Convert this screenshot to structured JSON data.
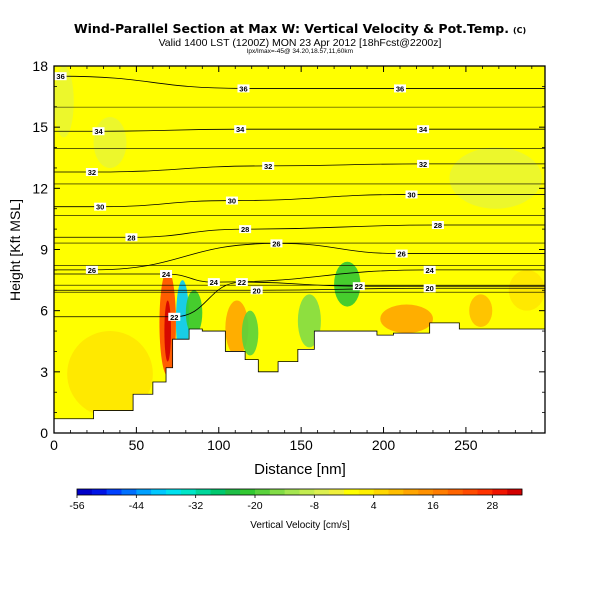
{
  "title": "Wind-Parallel Section at Max W: Vertical Velocity & Pot.Temp.",
  "title_mark": "(C)",
  "subtitle": "Valid 1400 LST (1200Z) MON 23 Apr 2012 [18hFcst@2200z]",
  "info": "lpx/lmax=-45@ 34.20,18.57,11,60km",
  "chart_data": {
    "type": "heatmap",
    "xlabel": "Distance [nm]",
    "ylabel": "Height [Kft MSL]",
    "xlim": [
      0,
      298
    ],
    "ylim": [
      0,
      18
    ],
    "x_ticks": [
      0,
      50,
      100,
      150,
      200,
      250
    ],
    "y_ticks": [
      0,
      3,
      6,
      9,
      12,
      15,
      18
    ],
    "colorbar": {
      "label": "Vertical Velocity [cm/s]",
      "tick_labels": [
        "-56",
        "-44",
        "-32",
        "-20",
        "-8",
        "4",
        "16",
        "28"
      ],
      "bins": [
        {
          "from": -56,
          "to": -53,
          "color": "#0000c8"
        },
        {
          "from": -53,
          "to": -50,
          "color": "#0014e6"
        },
        {
          "from": -50,
          "to": -47,
          "color": "#0040ff"
        },
        {
          "from": -47,
          "to": -44,
          "color": "#0070ff"
        },
        {
          "from": -44,
          "to": -41,
          "color": "#00a0ff"
        },
        {
          "from": -41,
          "to": -38,
          "color": "#00c8ff"
        },
        {
          "from": -38,
          "to": -35,
          "color": "#00e1f0"
        },
        {
          "from": -35,
          "to": -32,
          "color": "#00e6c8"
        },
        {
          "from": -32,
          "to": -29,
          "color": "#00d79b"
        },
        {
          "from": -29,
          "to": -26,
          "color": "#00c86e"
        },
        {
          "from": -26,
          "to": -23,
          "color": "#1ebe46"
        },
        {
          "from": -23,
          "to": -20,
          "color": "#32c832"
        },
        {
          "from": -20,
          "to": -17,
          "color": "#5ad23c"
        },
        {
          "from": -17,
          "to": -14,
          "color": "#82dc46"
        },
        {
          "from": -14,
          "to": -11,
          "color": "#a5e650"
        },
        {
          "from": -11,
          "to": -8,
          "color": "#c3ec50"
        },
        {
          "from": -8,
          "to": -5,
          "color": "#dcf050"
        },
        {
          "from": -5,
          "to": -2,
          "color": "#f0f03c"
        },
        {
          "from": -2,
          "to": 1,
          "color": "#ffff00"
        },
        {
          "from": 1,
          "to": 4,
          "color": "#fff000"
        },
        {
          "from": 4,
          "to": 7,
          "color": "#ffd700"
        },
        {
          "from": 7,
          "to": 10,
          "color": "#ffbe00"
        },
        {
          "from": 10,
          "to": 13,
          "color": "#ffa500"
        },
        {
          "from": 13,
          "to": 16,
          "color": "#ff9100"
        },
        {
          "from": 16,
          "to": 19,
          "color": "#ff7d00"
        },
        {
          "from": 19,
          "to": 22,
          "color": "#ff6400"
        },
        {
          "from": 22,
          "to": 25,
          "color": "#ff4b00"
        },
        {
          "from": 25,
          "to": 28,
          "color": "#ff3200"
        },
        {
          "from": 28,
          "to": 31,
          "color": "#f01400"
        },
        {
          "from": 31,
          "to": 34,
          "color": "#d20000"
        }
      ]
    },
    "background_color": "#ffff00",
    "terrain_color": "#ffffff",
    "terrain_profile": [
      [
        0,
        0.7
      ],
      [
        20,
        0.7
      ],
      [
        24,
        0.7
      ],
      [
        24,
        1.1
      ],
      [
        48,
        1.1
      ],
      [
        48,
        1.9
      ],
      [
        60,
        1.9
      ],
      [
        60,
        2.5
      ],
      [
        68,
        2.5
      ],
      [
        68,
        3.2
      ],
      [
        72,
        3.2
      ],
      [
        72,
        4.6
      ],
      [
        82,
        4.6
      ],
      [
        82,
        5.1
      ],
      [
        90,
        5.1
      ],
      [
        90,
        5.0
      ],
      [
        104,
        5.0
      ],
      [
        104,
        4.0
      ],
      [
        116,
        4.0
      ],
      [
        116,
        3.6
      ],
      [
        124,
        3.6
      ],
      [
        124,
        3.0
      ],
      [
        136,
        3.0
      ],
      [
        136,
        3.5
      ],
      [
        148,
        3.5
      ],
      [
        148,
        4.1
      ],
      [
        158,
        4.1
      ],
      [
        158,
        5.0
      ],
      [
        196,
        5.0
      ],
      [
        196,
        4.8
      ],
      [
        206,
        4.8
      ],
      [
        206,
        4.9
      ],
      [
        228,
        4.9
      ],
      [
        228,
        5.4
      ],
      [
        246,
        5.4
      ],
      [
        246,
        5.1
      ],
      [
        268,
        5.1
      ],
      [
        268,
        5.1
      ],
      [
        290,
        5.1
      ],
      [
        298,
        5.1
      ]
    ],
    "velocity_features": [
      {
        "kind": "strong-updraft",
        "color": "#ff4b00",
        "x": [
          64,
          74
        ],
        "y": [
          2.8,
          8.0
        ]
      },
      {
        "kind": "strong-updraft-core",
        "color": "#d20000",
        "x": [
          67,
          71
        ],
        "y": [
          3.5,
          6.5
        ]
      },
      {
        "kind": "downdraft",
        "color": "#00c8ff",
        "x": [
          74,
          82
        ],
        "y": [
          3.5,
          7.5
        ]
      },
      {
        "kind": "downdraft-edge",
        "color": "#32c832",
        "x": [
          80,
          90
        ],
        "y": [
          4.8,
          7.0
        ]
      },
      {
        "kind": "updraft",
        "color": "#ffa500",
        "x": [
          104,
          118
        ],
        "y": [
          3.8,
          6.5
        ]
      },
      {
        "kind": "downdraft",
        "color": "#5ad23c",
        "x": [
          114,
          124
        ],
        "y": [
          3.8,
          6.0
        ]
      },
      {
        "kind": "downdraft",
        "color": "#82dc46",
        "x": [
          148,
          162
        ],
        "y": [
          4.2,
          6.8
        ]
      },
      {
        "kind": "downdraft",
        "color": "#32c832",
        "x": [
          170,
          186
        ],
        "y": [
          6.2,
          8.4
        ]
      },
      {
        "kind": "updraft",
        "color": "#ffa500",
        "x": [
          198,
          230
        ],
        "y": [
          4.9,
          6.3
        ]
      },
      {
        "kind": "updraft",
        "color": "#ffbe00",
        "x": [
          252,
          266
        ],
        "y": [
          5.2,
          6.8
        ]
      },
      {
        "kind": "weak-downdraft",
        "color": "#dcf050",
        "x": [
          0,
          12
        ],
        "y": [
          14.5,
          18
        ]
      },
      {
        "kind": "weak-downdraft",
        "color": "#dcf050",
        "x": [
          24,
          44
        ],
        "y": [
          13.0,
          15.5
        ]
      },
      {
        "kind": "weak-downdraft",
        "color": "#dcf050",
        "x": [
          240,
          296
        ],
        "y": [
          11.0,
          14.0
        ]
      },
      {
        "kind": "weak-updraft",
        "color": "#ffd700",
        "x": [
          8,
          60
        ],
        "y": [
          0.8,
          5.0
        ]
      },
      {
        "kind": "weak-updraft",
        "color": "#ffd700",
        "x": [
          276,
          298
        ],
        "y": [
          6.0,
          8.0
        ]
      }
    ],
    "contour_field": "Potential Temperature",
    "contour_label_points": [
      {
        "label": "36",
        "x": 4,
        "y": 17.5
      },
      {
        "label": "36",
        "x": 115,
        "y": 16.9
      },
      {
        "label": "36",
        "x": 210,
        "y": 16.9
      },
      {
        "label": "34",
        "x": 27,
        "y": 14.8
      },
      {
        "label": "34",
        "x": 113,
        "y": 14.9
      },
      {
        "label": "34",
        "x": 224,
        "y": 14.9
      },
      {
        "label": "32",
        "x": 23,
        "y": 12.8
      },
      {
        "label": "32",
        "x": 130,
        "y": 13.1
      },
      {
        "label": "32",
        "x": 224,
        "y": 13.2
      },
      {
        "label": "30",
        "x": 28,
        "y": 11.1
      },
      {
        "label": "30",
        "x": 108,
        "y": 11.4
      },
      {
        "label": "30",
        "x": 217,
        "y": 11.7
      },
      {
        "label": "28",
        "x": 47,
        "y": 9.6
      },
      {
        "label": "28",
        "x": 116,
        "y": 10.0
      },
      {
        "label": "28",
        "x": 233,
        "y": 10.2
      },
      {
        "label": "26",
        "x": 23,
        "y": 8.0
      },
      {
        "label": "26",
        "x": 135,
        "y": 9.3
      },
      {
        "label": "26",
        "x": 211,
        "y": 8.8
      },
      {
        "label": "24",
        "x": 68,
        "y": 7.8
      },
      {
        "label": "24",
        "x": 97,
        "y": 7.4
      },
      {
        "label": "24",
        "x": 228,
        "y": 8.0
      },
      {
        "label": "22",
        "x": 114,
        "y": 7.4
      },
      {
        "label": "22",
        "x": 185,
        "y": 7.2
      },
      {
        "label": "20",
        "x": 123,
        "y": 7.0
      },
      {
        "label": "20",
        "x": 228,
        "y": 7.1
      },
      {
        "label": "22",
        "x": 73,
        "y": 5.7
      }
    ]
  }
}
